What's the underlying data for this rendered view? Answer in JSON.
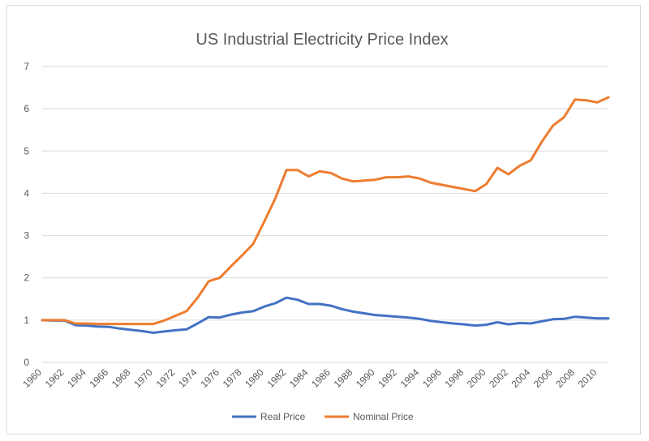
{
  "chart_data": {
    "type": "line",
    "title": "US Industrial Electricity Price Index",
    "xlabel": "",
    "ylabel": "",
    "ylim": [
      0,
      7
    ],
    "yticks": [
      0,
      1,
      2,
      3,
      4,
      5,
      6,
      7
    ],
    "grid": true,
    "legend_position": "bottom",
    "x": [
      1960,
      1961,
      1962,
      1963,
      1964,
      1965,
      1966,
      1967,
      1968,
      1969,
      1970,
      1971,
      1972,
      1973,
      1974,
      1975,
      1976,
      1977,
      1978,
      1979,
      1980,
      1981,
      1982,
      1983,
      1984,
      1985,
      1986,
      1987,
      1988,
      1989,
      1990,
      1991,
      1992,
      1993,
      1994,
      1995,
      1996,
      1997,
      1998,
      1999,
      2000,
      2001,
      2002,
      2003,
      2004,
      2005,
      2006,
      2007,
      2008,
      2009,
      2010,
      2011
    ],
    "xtick_labels": [
      "1960",
      "1962",
      "1964",
      "1966",
      "1968",
      "1970",
      "1972",
      "1974",
      "1976",
      "1978",
      "1980",
      "1982",
      "1984",
      "1986",
      "1988",
      "1990",
      "1992",
      "1994",
      "1996",
      "1998",
      "2000",
      "2002",
      "2004",
      "2006",
      "2008",
      "2010"
    ],
    "series": [
      {
        "name": "Real Price",
        "color": "#4472c4",
        "values": [
          1.0,
          0.99,
          0.99,
          0.88,
          0.87,
          0.85,
          0.84,
          0.8,
          0.77,
          0.74,
          0.7,
          0.73,
          0.76,
          0.78,
          0.92,
          1.07,
          1.06,
          1.13,
          1.18,
          1.21,
          1.32,
          1.4,
          1.53,
          1.48,
          1.38,
          1.38,
          1.34,
          1.26,
          1.2,
          1.16,
          1.12,
          1.1,
          1.08,
          1.06,
          1.03,
          0.98,
          0.95,
          0.92,
          0.9,
          0.87,
          0.89,
          0.95,
          0.9,
          0.93,
          0.92,
          0.97,
          1.02,
          1.03,
          1.08,
          1.06,
          1.04,
          1.04
        ]
      },
      {
        "name": "Nominal Price",
        "color": "#ed7d31",
        "values": [
          1.0,
          1.0,
          1.0,
          0.92,
          0.92,
          0.91,
          0.91,
          0.91,
          0.91,
          0.91,
          0.91,
          0.99,
          1.1,
          1.21,
          1.53,
          1.92,
          2.0,
          2.27,
          2.53,
          2.8,
          3.33,
          3.88,
          4.55,
          4.55,
          4.4,
          4.52,
          4.48,
          4.35,
          4.28,
          4.3,
          4.32,
          4.38,
          4.38,
          4.4,
          4.35,
          4.25,
          4.2,
          4.15,
          4.1,
          4.05,
          4.22,
          4.6,
          4.45,
          4.65,
          4.78,
          5.22,
          5.6,
          5.8,
          6.22,
          6.2,
          6.15,
          6.27
        ]
      }
    ]
  }
}
